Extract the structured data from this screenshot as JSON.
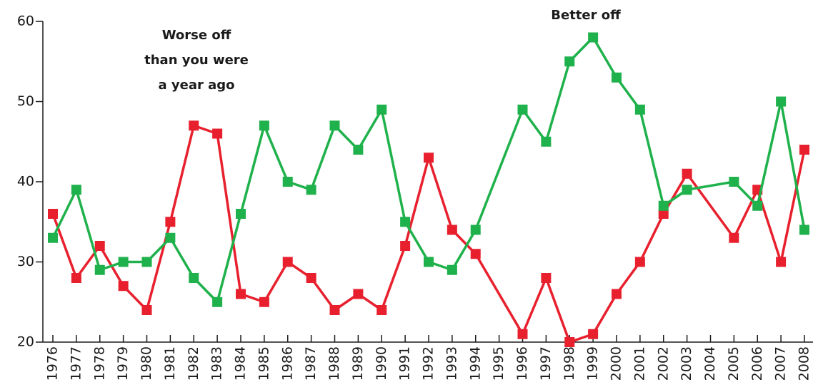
{
  "chart_data": {
    "type": "line",
    "x": [
      1976,
      1977,
      1978,
      1979,
      1980,
      1981,
      1982,
      1983,
      1984,
      1985,
      1986,
      1987,
      1988,
      1989,
      1990,
      1991,
      1992,
      1993,
      1994,
      1996,
      1997,
      1998,
      1999,
      2000,
      2001,
      2002,
      2003,
      2005,
      2006,
      2007,
      2008
    ],
    "series": [
      {
        "color": "#e8202e",
        "values": [
          36,
          28,
          32,
          27,
          24,
          35,
          47,
          46,
          26,
          25,
          30,
          28,
          24,
          26,
          24,
          32,
          43,
          34,
          31,
          21,
          28,
          20,
          21,
          26,
          30,
          36,
          41,
          33,
          39,
          30,
          44
        ]
      },
      {
        "color": "#1fb14b",
        "values": [
          33,
          39,
          29,
          30,
          30,
          33,
          28,
          25,
          36,
          47,
          40,
          39,
          47,
          44,
          49,
          35,
          30,
          29,
          34,
          49,
          45,
          55,
          58,
          53,
          49,
          37,
          39,
          40,
          37,
          50,
          34
        ]
      }
    ],
    "annotations": [
      {
        "lines": [
          "Worse off",
          "than you were",
          "a year ago"
        ]
      },
      {
        "lines": [
          "Better off"
        ]
      }
    ],
    "xlim": [
      1976,
      2008
    ],
    "xticks": [
      1976,
      1977,
      1978,
      1979,
      1980,
      1981,
      1982,
      1983,
      1984,
      1985,
      1986,
      1987,
      1988,
      1989,
      1990,
      1991,
      1992,
      1993,
      1994,
      1995,
      1996,
      1997,
      1998,
      1999,
      2000,
      2001,
      2002,
      2003,
      2004,
      2005,
      2006,
      2007,
      2008
    ],
    "ylim": [
      20,
      60
    ],
    "yticks": [
      20,
      30,
      40,
      50,
      60
    ]
  }
}
